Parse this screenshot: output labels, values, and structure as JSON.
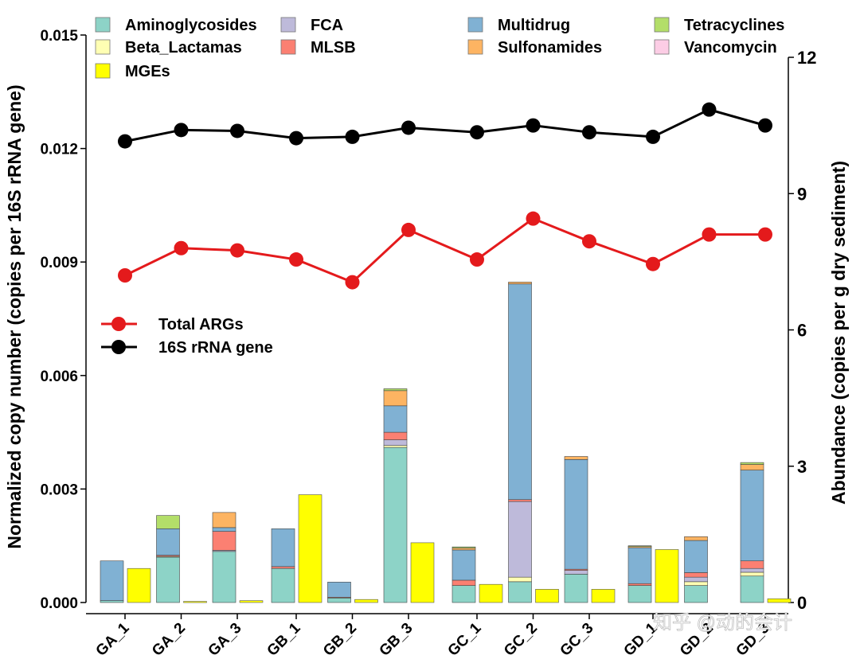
{
  "chart_data": {
    "type": "bar",
    "title": "",
    "xlabel": "",
    "ylabel": "Normalized copy number (copies per 16S rRNA gene)",
    "y2label": "Abundance (copies per g dry sediment)",
    "ylim": [
      0,
      0.015
    ],
    "y2lim": [
      0,
      12
    ],
    "yticks": [
      "0.000",
      "0.003",
      "0.006",
      "0.009",
      "0.012",
      "0.015"
    ],
    "y2ticks": [
      "0",
      "3",
      "6",
      "9",
      "12"
    ],
    "categories": [
      "GA_1",
      "GA_2",
      "GA_3",
      "GB_1",
      "GB_2",
      "GB_3",
      "GC_1",
      "GC_2",
      "GC_3",
      "GD_1",
      "GD_2",
      "GD_3"
    ],
    "groups": [
      3,
      3,
      3,
      3
    ],
    "arg_classes": [
      {
        "name": "Aminoglycosides",
        "color": "#8dd3c7",
        "values": [
          5e-05,
          0.0012,
          0.00135,
          0.0009,
          0.00012,
          0.0041,
          0.00045,
          0.00055,
          0.00075,
          0.00045,
          0.00045,
          0.0007
        ]
      },
      {
        "name": "Beta_Lactamas",
        "color": "#ffffb3",
        "values": [
          0.0,
          2e-05,
          0.0,
          0.0,
          0.0,
          5e-05,
          0.0,
          0.00012,
          0.0,
          0.0,
          0.0001,
          0.0001
        ]
      },
      {
        "name": "FCA",
        "color": "#bebada",
        "values": [
          0.0,
          0.0,
          3e-05,
          0.0,
          0.0,
          0.00015,
          0.0,
          0.002,
          0.0001,
          0.0,
          0.00012,
          0.0001
        ]
      },
      {
        "name": "MLSB",
        "color": "#fb8072",
        "values": [
          0.0,
          3e-05,
          0.0005,
          5e-05,
          2e-05,
          0.0002,
          0.00014,
          5e-05,
          3e-05,
          5e-05,
          0.00012,
          0.0002
        ]
      },
      {
        "name": "Multidrug",
        "color": "#80b1d3",
        "values": [
          0.00105,
          0.0007,
          0.0001,
          0.001,
          0.0004,
          0.0007,
          0.0008,
          0.0057,
          0.0029,
          0.00095,
          0.00085,
          0.0024
        ]
      },
      {
        "name": "Sulfonamides",
        "color": "#fdb462",
        "values": [
          0.0,
          0.0,
          0.0004,
          0.0,
          0.0,
          0.0004,
          5e-05,
          5e-05,
          8e-05,
          3e-05,
          0.0001,
          0.00015
        ]
      },
      {
        "name": "Tetracyclines",
        "color": "#b3de69",
        "values": [
          0.0,
          0.00035,
          0.0,
          0.0,
          0.0,
          5e-05,
          3e-05,
          0.0,
          0.0,
          2e-05,
          0.0,
          5e-05
        ]
      },
      {
        "name": "Vancomycin",
        "color": "#fccde5",
        "values": [
          0.0,
          0.0,
          0.0,
          0.0,
          0.0,
          0.0,
          0.0,
          0.0,
          0.0,
          0.0,
          0.0,
          0.0
        ]
      }
    ],
    "mges": {
      "name": "MGEs",
      "color": "#ffff00",
      "values": [
        0.0009,
        3e-05,
        5e-05,
        0.00285,
        8e-05,
        0.00158,
        0.00048,
        0.00035,
        0.00035,
        0.0014,
        0.0,
        0.0001
      ]
    },
    "lines": [
      {
        "name": "Total ARGs",
        "color": "#e41a1c",
        "axis": "right",
        "values": [
          7.2,
          7.8,
          7.75,
          7.55,
          7.05,
          8.2,
          7.55,
          8.45,
          7.95,
          7.45,
          8.1,
          8.1
        ]
      },
      {
        "name": "16S rRNA gene",
        "color": "#000000",
        "axis": "right",
        "values": [
          10.15,
          10.4,
          10.38,
          10.22,
          10.25,
          10.45,
          10.35,
          10.5,
          10.35,
          10.25,
          10.85,
          10.5
        ]
      }
    ],
    "legend_order": [
      "Aminoglycosides",
      "FCA",
      "Multidrug",
      "Tetracyclines",
      "Beta_Lactamas",
      "MLSB",
      "Sulfonamides",
      "Vancomycin",
      "MGEs"
    ]
  },
  "watermark": "知乎 @动的会计"
}
